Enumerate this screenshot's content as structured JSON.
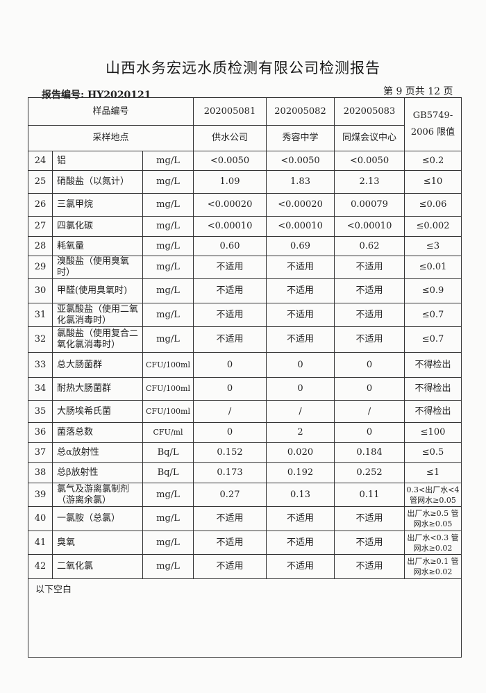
{
  "title": "山西水务宏远水质检测有限公司检测报告",
  "report_no": "报告编号: HY2020121",
  "page_no": "第 9 页共 12 页",
  "header": {
    "sample_no_label": "样品编号",
    "location_label": "采样地点",
    "limit_label": "GB5749-2006 限值",
    "samples": [
      {
        "id": "202005081",
        "location": "供水公司"
      },
      {
        "id": "202005082",
        "location": "秀容中学"
      },
      {
        "id": "202005083",
        "location": "同煤会议中心"
      }
    ]
  },
  "rows": [
    {
      "no": "24",
      "item": "铝",
      "unit": "mg/L",
      "v": [
        "<0.0050",
        "<0.0050",
        "<0.0050"
      ],
      "limit": "≤0.2"
    },
    {
      "no": "25",
      "item": "硝酸盐（以氮计）",
      "unit": "mg/L",
      "v": [
        "1.09",
        "1.83",
        "2.13"
      ],
      "limit": "≤10"
    },
    {
      "no": "26",
      "item": "三氯甲烷",
      "unit": "mg/L",
      "v": [
        "<0.00020",
        "<0.00020",
        "0.00079"
      ],
      "limit": "≤0.06"
    },
    {
      "no": "27",
      "item": "四氯化碳",
      "unit": "mg/L",
      "v": [
        "<0.00010",
        "<0.00010",
        "<0.00010"
      ],
      "limit": "≤0.002"
    },
    {
      "no": "28",
      "item": "耗氧量",
      "unit": "mg/L",
      "v": [
        "0.60",
        "0.69",
        "0.62"
      ],
      "limit": "≤3"
    },
    {
      "no": "29",
      "item": "溴酸盐（使用臭氧时）",
      "unit": "mg/L",
      "v": [
        "不适用",
        "不适用",
        "不适用"
      ],
      "limit": "≤0.01"
    },
    {
      "no": "30",
      "item": "甲醛(使用臭氧时)",
      "unit": "mg/L",
      "v": [
        "不适用",
        "不适用",
        "不适用"
      ],
      "limit": "≤0.9"
    },
    {
      "no": "31",
      "item": "亚氯酸盐（使用二氧化氯消毒时）",
      "unit": "mg/L",
      "v": [
        "不适用",
        "不适用",
        "不适用"
      ],
      "limit": "≤0.7"
    },
    {
      "no": "32",
      "item": "氯酸盐（使用复合二氧化氯消毒时）",
      "unit": "mg/L",
      "v": [
        "不适用",
        "不适用",
        "不适用"
      ],
      "limit": "≤0.7"
    },
    {
      "no": "33",
      "item": "总大肠菌群",
      "unit": "CFU/100ml",
      "v": [
        "0",
        "0",
        "0"
      ],
      "limit": "不得检出"
    },
    {
      "no": "34",
      "item": "耐热大肠菌群",
      "unit": "CFU/100ml",
      "v": [
        "0",
        "0",
        "0"
      ],
      "limit": "不得检出"
    },
    {
      "no": "35",
      "item": "大肠埃希氏菌",
      "unit": "CFU/100ml",
      "v": [
        "/",
        "/",
        "/"
      ],
      "limit": "不得检出"
    },
    {
      "no": "36",
      "item": "菌落总数",
      "unit": "CFU/ml",
      "v": [
        "0",
        "2",
        "0"
      ],
      "limit": "≤100"
    },
    {
      "no": "37",
      "item": "总α放射性",
      "unit": "Bq/L",
      "v": [
        "0.152",
        "0.020",
        "0.184"
      ],
      "limit": "≤0.5"
    },
    {
      "no": "38",
      "item": "总β放射性",
      "unit": "Bq/L",
      "v": [
        "0.173",
        "0.192",
        "0.252"
      ],
      "limit": "≤1"
    },
    {
      "no": "39",
      "item": "氯气及游离氯制剂（游离余氯）",
      "unit": "mg/L",
      "v": [
        "0.27",
        "0.13",
        "0.11"
      ],
      "limit": "0.3<出厂水<4 管网水≥0.05"
    },
    {
      "no": "40",
      "item": "一氯胺（总氯）",
      "unit": "mg/L",
      "v": [
        "不适用",
        "不适用",
        "不适用"
      ],
      "limit": "出厂水≥0.5 管网水≥0.05"
    },
    {
      "no": "41",
      "item": "臭氧",
      "unit": "mg/L",
      "v": [
        "不适用",
        "不适用",
        "不适用"
      ],
      "limit": "出厂水<0.3 管网水≥0.02"
    },
    {
      "no": "42",
      "item": "二氧化氯",
      "unit": "mg/L",
      "v": [
        "不适用",
        "不适用",
        "不适用"
      ],
      "limit": "出厂水≥0.1 管网水≥0.02"
    }
  ],
  "footer_note": "以下空白"
}
